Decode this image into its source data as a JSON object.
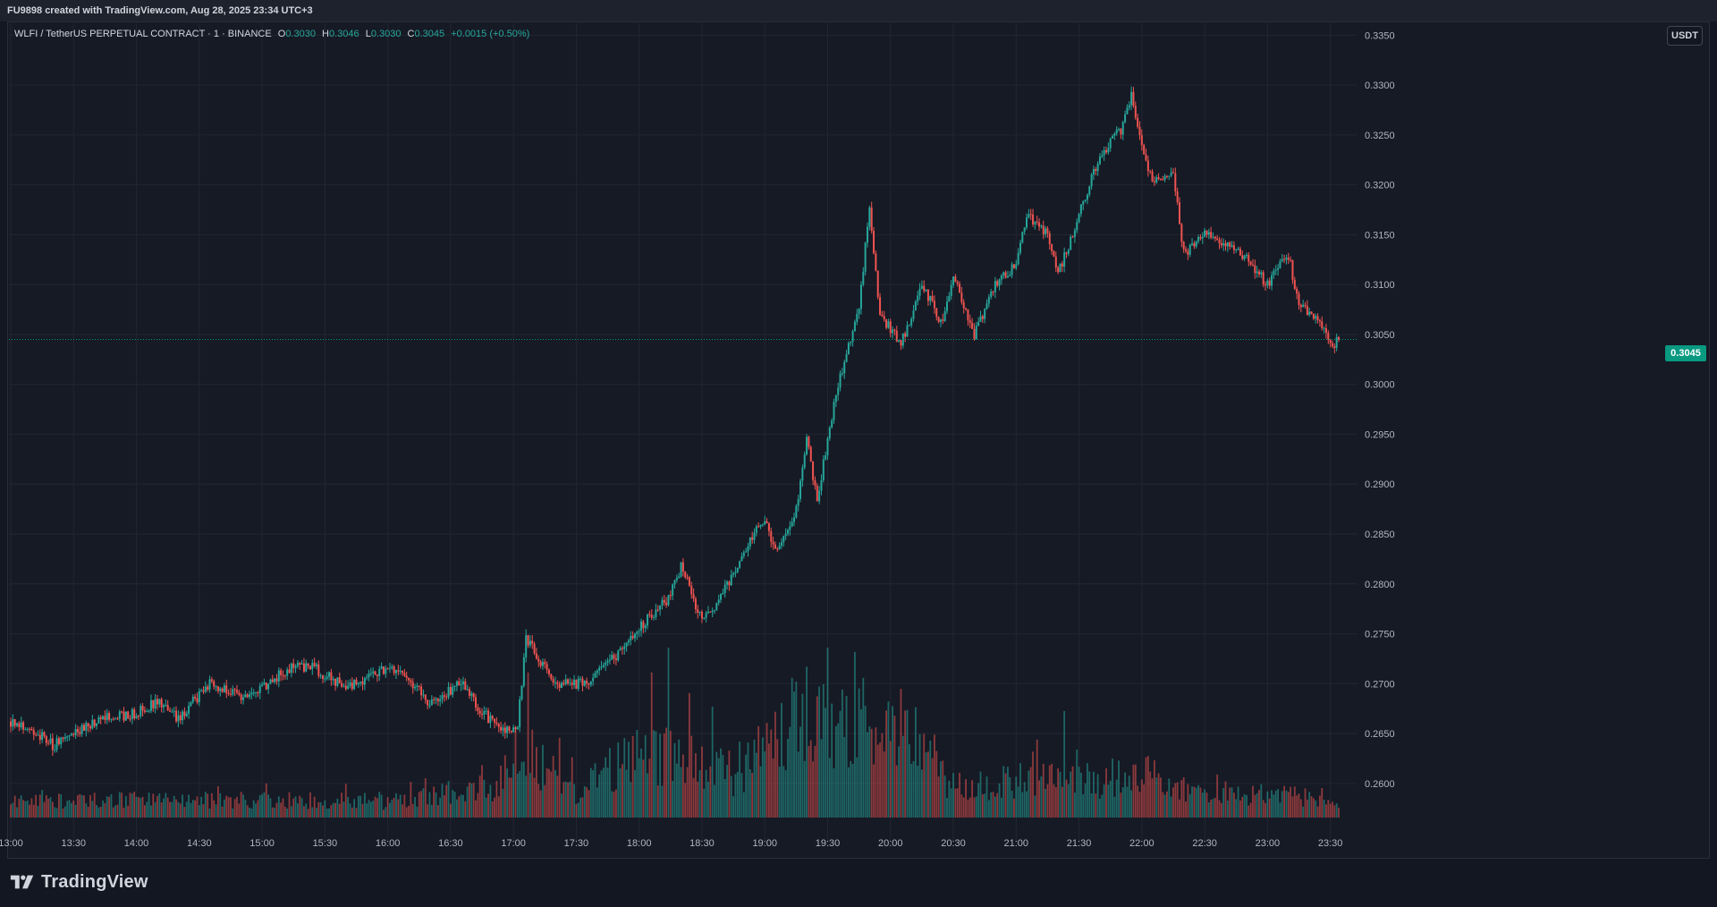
{
  "header": {
    "credit": "FU9898 created with TradingView.com, Aug 28, 2025 23:34 UTC+3"
  },
  "legend": {
    "symbol": "WLFI / TetherUS PERPETUAL CONTRACT · 1 · BINANCE",
    "o_label": "O",
    "o_value": "0.3030",
    "h_label": "H",
    "h_value": "0.3046",
    "l_label": "L",
    "l_value": "0.3030",
    "c_label": "C",
    "c_value": "0.3045",
    "change": "+0.0015 (+0.50%)"
  },
  "currency_button": "USDT",
  "last_price_tag": "0.3045",
  "logo_text": "TradingView",
  "colors": {
    "up": "#26a69a",
    "down": "#ef5350",
    "background": "#161a25",
    "grid": "#232632",
    "last_price": "#089981"
  },
  "chart_data": {
    "type": "candlestick",
    "title": "WLFI / TetherUS PERPETUAL CONTRACT · 1 · BINANCE",
    "xlabel": "",
    "ylabel": "",
    "x_ticks": [
      "13:00",
      "13:30",
      "14:00",
      "14:30",
      "15:00",
      "15:30",
      "16:00",
      "16:30",
      "17:00",
      "17:30",
      "18:00",
      "18:30",
      "19:00",
      "19:30",
      "20:00",
      "20:30",
      "21:00",
      "21:30",
      "22:00",
      "22:30",
      "23:00",
      "23:30"
    ],
    "y_ticks": [
      "0.2600",
      "0.2650",
      "0.2700",
      "0.2750",
      "0.2800",
      "0.2850",
      "0.2900",
      "0.2950",
      "0.3000",
      "0.3050",
      "0.3100",
      "0.3150",
      "0.3200",
      "0.3250",
      "0.3300",
      "0.3350"
    ],
    "ylim": [
      0.2555,
      0.3362
    ],
    "last_price": 0.3045,
    "grid": true,
    "price_path": [
      {
        "t": "13:00",
        "price": 0.2662
      },
      {
        "t": "13:10",
        "price": 0.2655
      },
      {
        "t": "13:20",
        "price": 0.2638
      },
      {
        "t": "13:30",
        "price": 0.265
      },
      {
        "t": "13:45",
        "price": 0.2665
      },
      {
        "t": "14:00",
        "price": 0.267
      },
      {
        "t": "14:10",
        "price": 0.2682
      },
      {
        "t": "14:20",
        "price": 0.2666
      },
      {
        "t": "14:35",
        "price": 0.27
      },
      {
        "t": "14:50",
        "price": 0.2688
      },
      {
        "t": "15:00",
        "price": 0.2697
      },
      {
        "t": "15:15",
        "price": 0.2718
      },
      {
        "t": "15:25",
        "price": 0.2715
      },
      {
        "t": "15:40",
        "price": 0.2697
      },
      {
        "t": "16:00",
        "price": 0.2715
      },
      {
        "t": "16:10",
        "price": 0.2706
      },
      {
        "t": "16:20",
        "price": 0.268
      },
      {
        "t": "16:35",
        "price": 0.27
      },
      {
        "t": "16:45",
        "price": 0.2672
      },
      {
        "t": "16:55",
        "price": 0.2652
      },
      {
        "t": "17:02",
        "price": 0.266
      },
      {
        "t": "17:06",
        "price": 0.2745
      },
      {
        "t": "17:20",
        "price": 0.27
      },
      {
        "t": "17:35",
        "price": 0.27
      },
      {
        "t": "17:55",
        "price": 0.274
      },
      {
        "t": "18:05",
        "price": 0.2768
      },
      {
        "t": "18:15",
        "price": 0.2788
      },
      {
        "t": "18:20",
        "price": 0.2818
      },
      {
        "t": "18:30",
        "price": 0.2762
      },
      {
        "t": "18:40",
        "price": 0.279
      },
      {
        "t": "18:50",
        "price": 0.283
      },
      {
        "t": "19:00",
        "price": 0.2868
      },
      {
        "t": "19:05",
        "price": 0.283
      },
      {
        "t": "19:15",
        "price": 0.2875
      },
      {
        "t": "19:20",
        "price": 0.2945
      },
      {
        "t": "19:25",
        "price": 0.2885
      },
      {
        "t": "19:35",
        "price": 0.3
      },
      {
        "t": "19:45",
        "price": 0.308
      },
      {
        "t": "19:50",
        "price": 0.3175
      },
      {
        "t": "19:55",
        "price": 0.307
      },
      {
        "t": "20:05",
        "price": 0.304
      },
      {
        "t": "20:15",
        "price": 0.31
      },
      {
        "t": "20:25",
        "price": 0.306
      },
      {
        "t": "20:30",
        "price": 0.311
      },
      {
        "t": "20:40",
        "price": 0.305
      },
      {
        "t": "20:50",
        "price": 0.31
      },
      {
        "t": "21:00",
        "price": 0.312
      },
      {
        "t": "21:05",
        "price": 0.317
      },
      {
        "t": "21:15",
        "price": 0.315
      },
      {
        "t": "21:20",
        "price": 0.311
      },
      {
        "t": "21:30",
        "price": 0.317
      },
      {
        "t": "21:40",
        "price": 0.323
      },
      {
        "t": "21:50",
        "price": 0.3255
      },
      {
        "t": "21:55",
        "price": 0.329
      },
      {
        "t": "22:00",
        "price": 0.324
      },
      {
        "t": "22:05",
        "price": 0.3205
      },
      {
        "t": "22:15",
        "price": 0.3215
      },
      {
        "t": "22:20",
        "price": 0.313
      },
      {
        "t": "22:30",
        "price": 0.315
      },
      {
        "t": "22:40",
        "price": 0.314
      },
      {
        "t": "22:50",
        "price": 0.3125
      },
      {
        "t": "23:00",
        "price": 0.31
      },
      {
        "t": "23:10",
        "price": 0.313
      },
      {
        "t": "23:15",
        "price": 0.308
      },
      {
        "t": "23:25",
        "price": 0.306
      },
      {
        "t": "23:30",
        "price": 0.3038
      },
      {
        "t": "23:34",
        "price": 0.3045
      }
    ],
    "volume_levels": [
      {
        "t": "13:00",
        "level": 0.12
      },
      {
        "t": "14:00",
        "level": 0.14
      },
      {
        "t": "15:00",
        "level": 0.14
      },
      {
        "t": "16:00",
        "level": 0.13
      },
      {
        "t": "16:50",
        "level": 0.25
      },
      {
        "t": "17:05",
        "level": 0.55
      },
      {
        "t": "17:30",
        "level": 0.18
      },
      {
        "t": "18:00",
        "level": 0.55
      },
      {
        "t": "18:45",
        "level": 0.35
      },
      {
        "t": "19:20",
        "level": 0.85
      },
      {
        "t": "19:50",
        "level": 0.75
      },
      {
        "t": "20:05",
        "level": 0.8
      },
      {
        "t": "20:30",
        "level": 0.25
      },
      {
        "t": "21:00",
        "level": 0.3
      },
      {
        "t": "21:30",
        "level": 0.3
      },
      {
        "t": "22:00",
        "level": 0.35
      },
      {
        "t": "22:30",
        "level": 0.2
      },
      {
        "t": "23:00",
        "level": 0.2
      },
      {
        "t": "23:34",
        "level": 0.12
      }
    ]
  }
}
